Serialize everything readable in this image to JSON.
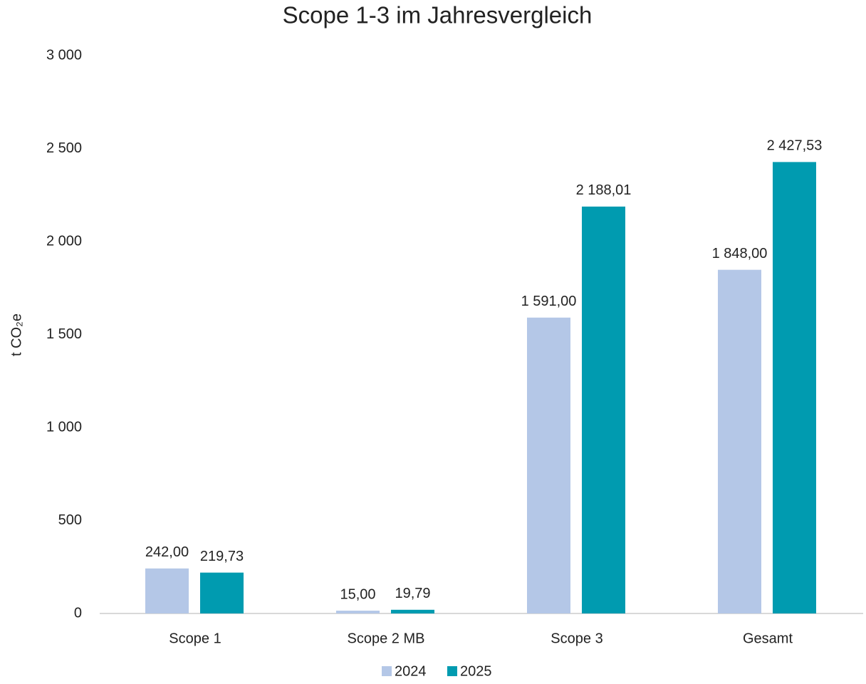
{
  "chart_data": {
    "type": "bar",
    "title": "Scope 1-3 im Jahresvergleich",
    "y_label": "t CO₂e",
    "categories": [
      "Scope 1",
      "Scope 2 MB",
      "Scope 3",
      "Gesamt"
    ],
    "series": [
      {
        "name": "2024",
        "color": "#b4c7e7",
        "values": [
          242,
          15,
          1591,
          1848
        ],
        "value_labels": [
          "242,00",
          "15,00",
          "1 591,00",
          "1 848,00"
        ]
      },
      {
        "name": "2025",
        "color": "#009bb0",
        "values": [
          219.73,
          19.79,
          2188.01,
          2427.53
        ],
        "value_labels": [
          "219,73",
          "19,79",
          "2 188,01",
          "2 427,53"
        ]
      }
    ],
    "ylim": [
      0,
      3000
    ],
    "yticks": [
      0,
      500,
      {
        "value": 1000,
        "label": "1 000"
      },
      {
        "value": 1500,
        "label": "1 500"
      },
      {
        "value": 2000,
        "label": "2 000"
      },
      {
        "value": 2500,
        "label": "2 500"
      },
      {
        "value": 3000,
        "label": "3 000"
      }
    ],
    "grid": false,
    "legend": "bottom"
  }
}
